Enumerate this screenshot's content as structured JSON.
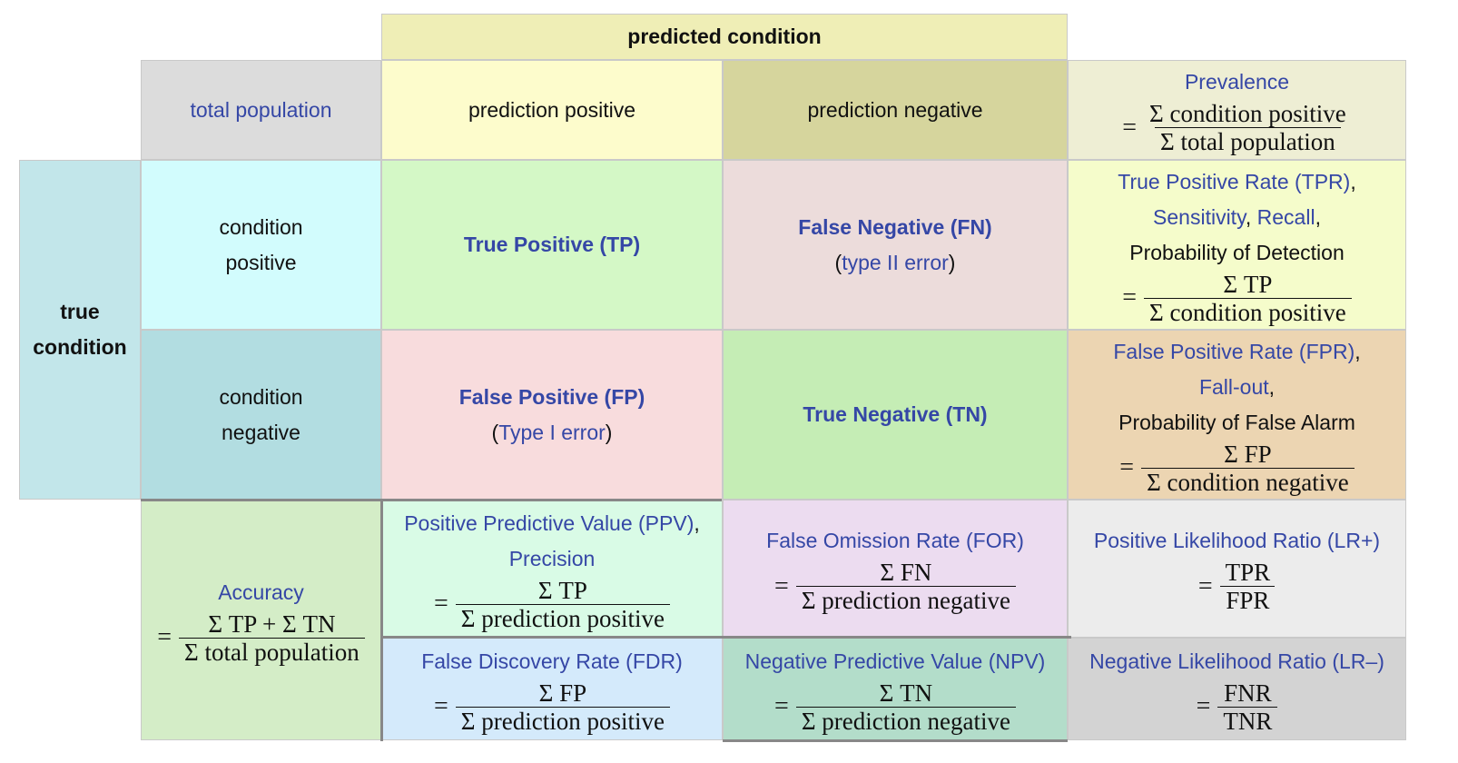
{
  "colors": {
    "header_top": "#efeeb6",
    "total_population": "#dcdcdc",
    "prediction_positive": "#fdfccc",
    "prediction_negative": "#d6d59d",
    "prevalence": "#eeeed4",
    "true_condition": "#c2e6ea",
    "condition_positive": "#d2fcfd",
    "condition_negative": "#b2dde1",
    "tp": "#d4f8c6",
    "fn": "#ecdcdb",
    "tpr": "#f5fccb",
    "fp": "#f8dcdd",
    "tn": "#c5edb5",
    "fpr": "#ecd5b2",
    "accuracy": "#d4edc7",
    "ppv": "#d9fbe6",
    "for": "#ecdcf0",
    "lr_plus": "#ececec",
    "fdr": "#d4eafb",
    "npv": "#b3ddca",
    "lr_minus": "#d3d3d3",
    "text_blue": "#3547a6",
    "text_dark": "#111111"
  },
  "header": {
    "predicted_condition": "predicted condition"
  },
  "row_header": {
    "total_population": "total population",
    "prediction_positive": "prediction positive",
    "prediction_negative": "prediction negative",
    "prevalence": {
      "label": "Prevalence",
      "eq": "=",
      "num": "Σ condition positive",
      "den": "Σ total population"
    }
  },
  "true_condition": {
    "line1": "true",
    "line2": "condition"
  },
  "condition_positive": {
    "line1": "condition",
    "line2": "positive"
  },
  "condition_negative": {
    "line1": "condition",
    "line2": "negative"
  },
  "tp": {
    "label": "True Positive (TP)"
  },
  "fn": {
    "label": "False Negative (FN)",
    "paren_open": "(",
    "sub": "type II error",
    "paren_close": ")"
  },
  "fp": {
    "label": "False Positive (FP)",
    "paren_open": "(",
    "sub": "Type I error",
    "paren_close": ")"
  },
  "tn": {
    "label": "True Negative (TN)"
  },
  "tpr": {
    "line1": "True Positive Rate (TPR)",
    "comma1": ",",
    "line2a": "Sensitivity",
    "comma2": ",",
    "line2b": "Recall",
    "comma3": ",",
    "line3": "Probability of Detection",
    "eq": "=",
    "num": "Σ TP",
    "den": "Σ condition positive"
  },
  "fpr": {
    "line1": "False Positive Rate (FPR)",
    "comma1": ",",
    "line2": "Fall-out",
    "comma2": ",",
    "line3": "Probability of False Alarm",
    "eq": "=",
    "num": "Σ FP",
    "den": "Σ condition negative"
  },
  "accuracy": {
    "label": "Accuracy",
    "eq": "=",
    "num": "Σ TP + Σ TN",
    "den": "Σ total population"
  },
  "ppv": {
    "line1": "Positive Predictive Value (PPV)",
    "comma1": ",",
    "line2": "Precision",
    "eq": "=",
    "num": "Σ TP",
    "den": "Σ prediction positive"
  },
  "for": {
    "label": "False Omission Rate (FOR)",
    "eq": "=",
    "num": "Σ FN",
    "den": "Σ prediction negative"
  },
  "lr_plus": {
    "label": "Positive Likelihood Ratio (LR+)",
    "eq": "=",
    "num": "TPR",
    "den": "FPR"
  },
  "fdr": {
    "label": "False Discovery Rate (FDR)",
    "eq": "=",
    "num": "Σ FP",
    "den": "Σ prediction positive"
  },
  "npv": {
    "label": "Negative Predictive Value (NPV)",
    "eq": "=",
    "num": "Σ TN",
    "den": "Σ prediction negative"
  },
  "lr_minus": {
    "label": "Negative Likelihood Ratio (LR–)",
    "eq": "=",
    "num": "FNR",
    "den": "TNR"
  }
}
